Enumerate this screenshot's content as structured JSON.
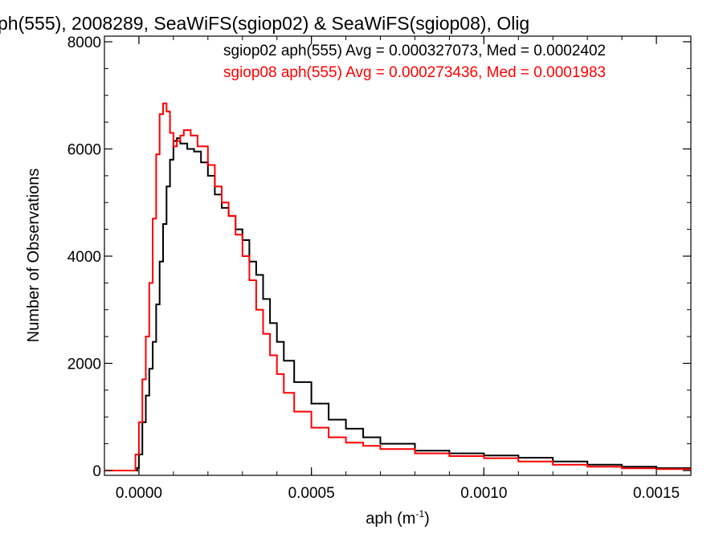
{
  "chart_data": {
    "type": "line",
    "title": "ph(555), 2008289, SeaWiFS(sgiop02) & SeaWiFS(sgiop08), Olig",
    "xlabel": "aph (m",
    "xlabel_sup": "-1",
    "xlabel_close": ")",
    "ylabel": "Number of Observations",
    "xlim": [
      -0.0001,
      0.0016
    ],
    "ylim": [
      0,
      8000
    ],
    "x_ticks": [
      {
        "value": 0.0,
        "label": "0.0000"
      },
      {
        "value": 0.0005,
        "label": "0.0005"
      },
      {
        "value": 0.001,
        "label": "0.0010"
      },
      {
        "value": 0.0015,
        "label": "0.0015"
      }
    ],
    "y_ticks": [
      {
        "value": 0,
        "label": "0"
      },
      {
        "value": 2000,
        "label": "2000"
      },
      {
        "value": 4000,
        "label": "4000"
      },
      {
        "value": 6000,
        "label": "6000"
      },
      {
        "value": 8000,
        "label": "8000"
      }
    ],
    "grid": false,
    "legend_position": "top-right",
    "series": [
      {
        "name": "sgiop02",
        "legend_text": "sgiop02 aph(555) Avg = 0.000327073, Med = 0.0002402",
        "color": "#000000",
        "points": [
          [
            -0.0001,
            0
          ],
          [
            -2e-05,
            0
          ],
          [
            -5e-06,
            50
          ],
          [
            0.0,
            300
          ],
          [
            1e-05,
            900
          ],
          [
            2e-05,
            1400
          ],
          [
            3e-05,
            1900
          ],
          [
            4e-05,
            2400
          ],
          [
            5e-05,
            3100
          ],
          [
            6e-05,
            3900
          ],
          [
            7e-05,
            4600
          ],
          [
            8e-05,
            5300
          ],
          [
            9e-05,
            5800
          ],
          [
            0.0001,
            6150
          ],
          [
            0.00011,
            6200
          ],
          [
            0.00012,
            6100
          ],
          [
            0.00014,
            6000
          ],
          [
            0.00016,
            5950
          ],
          [
            0.00018,
            5750
          ],
          [
            0.0002,
            5500
          ],
          [
            0.00022,
            5150
          ],
          [
            0.00024,
            4900
          ],
          [
            0.00026,
            4750
          ],
          [
            0.00028,
            4500
          ],
          [
            0.0003,
            4300
          ],
          [
            0.00032,
            3900
          ],
          [
            0.00034,
            3650
          ],
          [
            0.00036,
            3200
          ],
          [
            0.00038,
            2750
          ],
          [
            0.0004,
            2400
          ],
          [
            0.00042,
            2050
          ],
          [
            0.00045,
            1650
          ],
          [
            0.0005,
            1250
          ],
          [
            0.00055,
            950
          ],
          [
            0.0006,
            780
          ],
          [
            0.00065,
            620
          ],
          [
            0.0007,
            500
          ],
          [
            0.0008,
            370
          ],
          [
            0.0009,
            320
          ],
          [
            0.001,
            280
          ],
          [
            0.0011,
            240
          ],
          [
            0.0012,
            170
          ],
          [
            0.0013,
            110
          ],
          [
            0.0014,
            70
          ],
          [
            0.0015,
            45
          ],
          [
            0.0016,
            25
          ]
        ]
      },
      {
        "name": "sgiop08",
        "legend_text": "sgiop08 aph(555) Avg = 0.000273436, Med = 0.0001983",
        "color": "#ff0000",
        "points": [
          [
            -0.0001,
            0
          ],
          [
            -3e-05,
            0
          ],
          [
            -1e-05,
            300
          ],
          [
            0.0,
            900
          ],
          [
            1e-05,
            1700
          ],
          [
            2e-05,
            2500
          ],
          [
            3e-05,
            3500
          ],
          [
            4e-05,
            4700
          ],
          [
            5e-05,
            5900
          ],
          [
            6e-05,
            6650
          ],
          [
            7e-05,
            6850
          ],
          [
            8e-05,
            6700
          ],
          [
            9e-05,
            6300
          ],
          [
            0.0001,
            6050
          ],
          [
            0.00011,
            6150
          ],
          [
            0.00012,
            6250
          ],
          [
            0.00013,
            6350
          ],
          [
            0.00015,
            6250
          ],
          [
            0.00017,
            6050
          ],
          [
            0.0002,
            5700
          ],
          [
            0.00022,
            5300
          ],
          [
            0.00024,
            5000
          ],
          [
            0.00026,
            4750
          ],
          [
            0.00028,
            4400
          ],
          [
            0.0003,
            4000
          ],
          [
            0.00032,
            3550
          ],
          [
            0.00034,
            3000
          ],
          [
            0.00036,
            2550
          ],
          [
            0.00038,
            2150
          ],
          [
            0.0004,
            1800
          ],
          [
            0.00042,
            1450
          ],
          [
            0.00045,
            1100
          ],
          [
            0.0005,
            800
          ],
          [
            0.00055,
            620
          ],
          [
            0.0006,
            520
          ],
          [
            0.00065,
            460
          ],
          [
            0.0007,
            400
          ],
          [
            0.0008,
            320
          ],
          [
            0.0009,
            270
          ],
          [
            0.001,
            230
          ],
          [
            0.0011,
            170
          ],
          [
            0.0012,
            110
          ],
          [
            0.0013,
            70
          ],
          [
            0.0014,
            40
          ],
          [
            0.0015,
            25
          ],
          [
            0.0016,
            15
          ]
        ]
      }
    ]
  }
}
